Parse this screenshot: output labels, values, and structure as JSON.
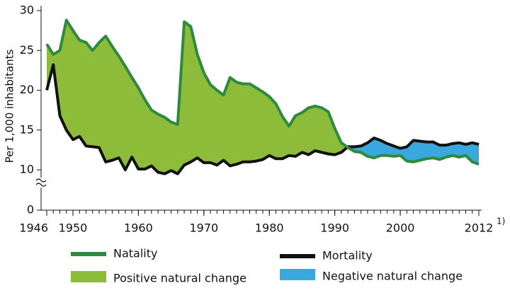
{
  "chart_data": {
    "type": "area_difference",
    "y_label": "Per 1,000 inhabitants",
    "x_footnote": "1)",
    "x": [
      1946,
      1947,
      1948,
      1949,
      1950,
      1951,
      1952,
      1953,
      1954,
      1955,
      1956,
      1957,
      1958,
      1959,
      1960,
      1961,
      1962,
      1963,
      1964,
      1965,
      1966,
      1967,
      1968,
      1969,
      1970,
      1971,
      1972,
      1973,
      1974,
      1975,
      1976,
      1977,
      1978,
      1979,
      1980,
      1981,
      1982,
      1983,
      1984,
      1985,
      1986,
      1987,
      1988,
      1989,
      1990,
      1991,
      1992,
      1993,
      1994,
      1995,
      1996,
      1997,
      1998,
      1999,
      2000,
      2001,
      2002,
      2003,
      2004,
      2005,
      2006,
      2007,
      2008,
      2009,
      2010,
      2011,
      2012
    ],
    "series": [
      {
        "name": "Natality",
        "color": "#2e8b3e",
        "values": [
          25.8,
          24.5,
          25.0,
          28.8,
          27.5,
          26.3,
          26.0,
          25.0,
          26.0,
          26.8,
          25.5,
          24.3,
          23.0,
          21.6,
          20.3,
          18.8,
          17.5,
          17.0,
          16.6,
          16.0,
          15.7,
          28.6,
          28.0,
          24.5,
          22.2,
          20.7,
          20.0,
          19.4,
          21.6,
          21.0,
          20.8,
          20.8,
          20.3,
          19.8,
          19.2,
          18.3,
          16.7,
          15.5,
          16.8,
          17.2,
          17.8,
          18.0,
          17.8,
          17.3,
          15.2,
          13.4,
          12.8,
          12.3,
          12.2,
          11.7,
          11.5,
          11.8,
          11.8,
          11.7,
          11.8,
          11.1,
          11.0,
          11.2,
          11.4,
          11.5,
          11.3,
          11.6,
          11.8,
          11.6,
          11.8,
          11.0,
          10.7
        ]
      },
      {
        "name": "Mortality",
        "color": "#111111",
        "values": [
          20.0,
          23.2,
          16.8,
          15.0,
          13.8,
          14.2,
          13.0,
          12.9,
          12.8,
          11.0,
          11.2,
          11.5,
          10.0,
          11.6,
          10.1,
          10.1,
          10.5,
          9.7,
          9.5,
          9.9,
          9.5,
          10.6,
          11.0,
          11.5,
          10.9,
          10.9,
          10.6,
          11.2,
          10.5,
          10.7,
          11.0,
          11.0,
          11.1,
          11.3,
          11.8,
          11.4,
          11.4,
          11.8,
          11.7,
          12.2,
          11.9,
          12.4,
          12.2,
          12.0,
          11.9,
          12.2,
          12.9,
          12.9,
          13.0,
          13.4,
          14.0,
          13.7,
          13.3,
          13.0,
          12.7,
          12.9,
          13.7,
          13.6,
          13.5,
          13.5,
          13.1,
          13.1,
          13.3,
          13.4,
          13.2,
          13.4,
          13.2
        ]
      }
    ],
    "fills": [
      {
        "name": "Positive natural change",
        "color": "#8dbb3a"
      },
      {
        "name": "Negative natural change",
        "color": "#3aa8dc"
      }
    ],
    "xlim": [
      1946,
      2012
    ],
    "xticks": [
      1946,
      1950,
      1960,
      1970,
      1980,
      1990,
      2000,
      2012
    ],
    "ylim": [
      0,
      30
    ],
    "y_break": [
      0,
      10
    ],
    "yticks": [
      0,
      10,
      15,
      20,
      25,
      30
    ]
  }
}
